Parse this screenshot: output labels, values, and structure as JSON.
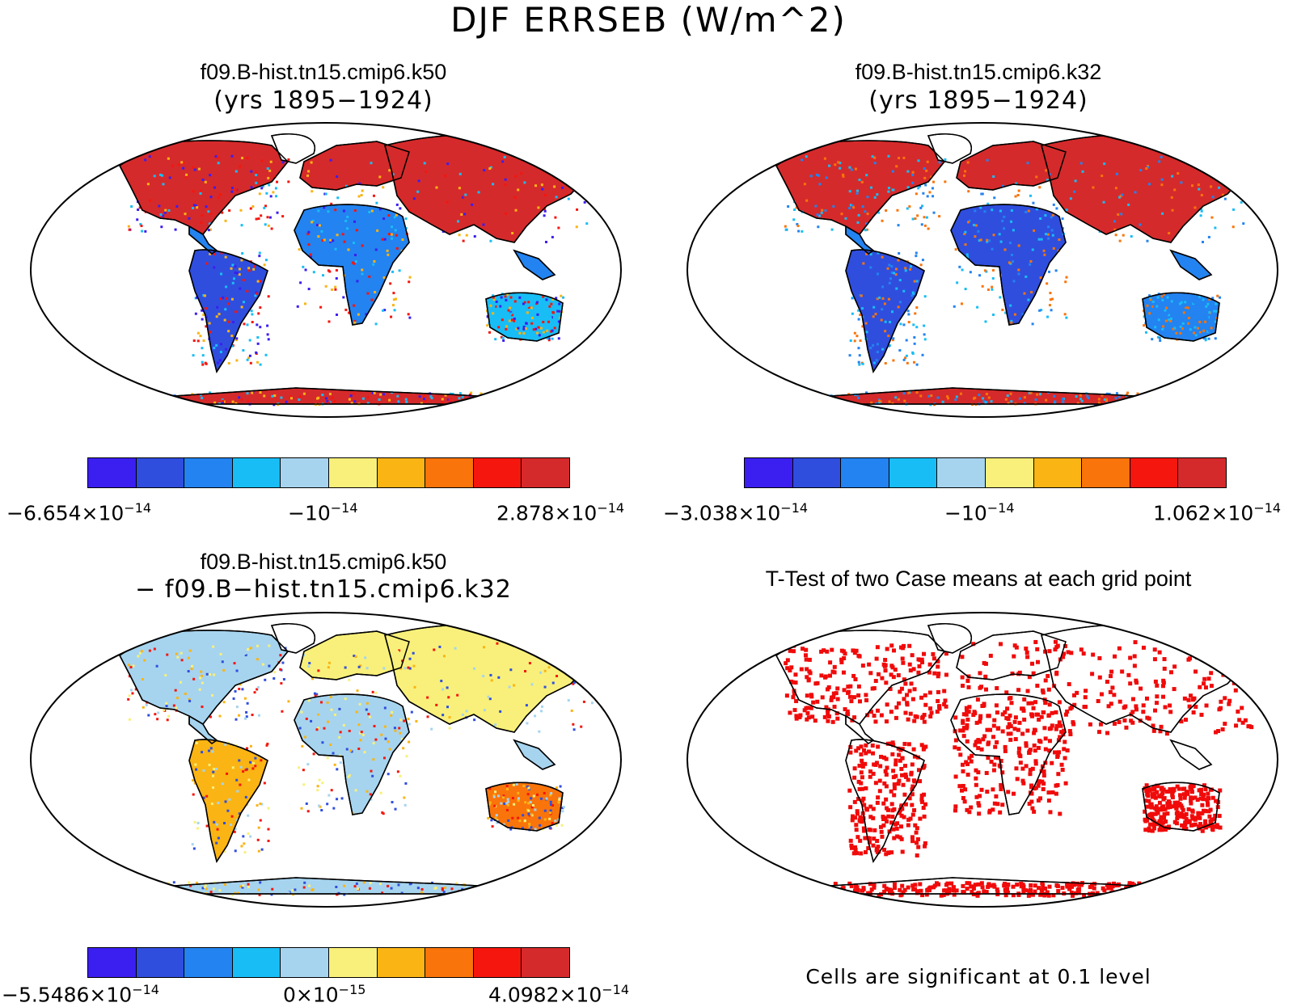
{
  "title": "DJF ERRSEB (W/m^2)",
  "palette": [
    "#3b1ef0",
    "#2f4ede",
    "#2383f0",
    "#19bdf5",
    "#a6d4ef",
    "#f8f07a",
    "#fab414",
    "#f9740a",
    "#f5160e",
    "#d52a2b"
  ],
  "land_color": "#ffffff",
  "panels": [
    {
      "id": "k50",
      "title": "f09.B-hist.tn15.cmip6.k50",
      "subtitle": "(yrs 1895−1924)",
      "colorbar": {
        "min": "−6.654×10",
        "min_exp": "−14",
        "mid": "−10",
        "mid_exp": "−14",
        "max": "2.878×10",
        "max_exp": "−14"
      }
    },
    {
      "id": "k32",
      "title": "f09.B-hist.tn15.cmip6.k32",
      "subtitle": "(yrs 1895−1924)",
      "colorbar": {
        "min": "−3.038×10",
        "min_exp": "−14",
        "mid": "−10",
        "mid_exp": "−14",
        "max": "1.062×10",
        "max_exp": "−14"
      }
    },
    {
      "id": "diff",
      "title": "f09.B-hist.tn15.cmip6.k50",
      "subtitle": "− f09.B−hist.tn15.cmip6.k32",
      "colorbar": {
        "min": "−5.5486×10",
        "min_exp": "−14",
        "mid": "0×10",
        "mid_exp": "−15",
        "max": "4.0982×10",
        "max_exp": "−14"
      }
    },
    {
      "id": "ttest",
      "title": "T-Test of two Case means at each grid point",
      "note": "Cells are significant at 0.1 level",
      "signif_color": "#f00a0a"
    }
  ]
}
